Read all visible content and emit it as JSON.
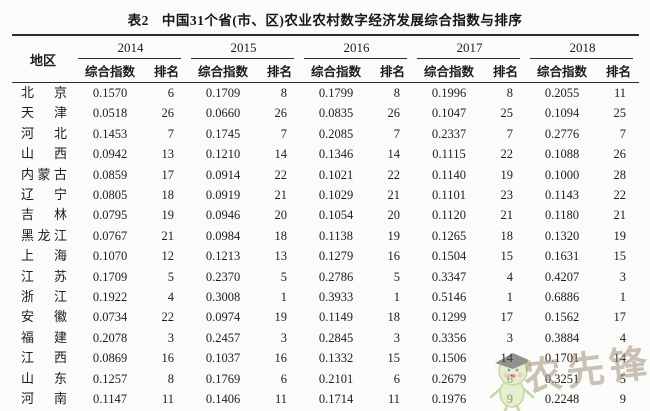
{
  "title": {
    "label": "表2",
    "text": "中国31个省(市、区)农业农村数字经济发展综合指数与排序"
  },
  "table": {
    "region_header": "地区",
    "years": [
      "2014",
      "2015",
      "2016",
      "2017",
      "2018"
    ],
    "subheaders": {
      "index": "综合指数",
      "rank": "排名"
    },
    "rows": [
      {
        "region": "北京",
        "cells": [
          "0.1570",
          "6",
          "0.1709",
          "8",
          "0.1799",
          "8",
          "0.1996",
          "8",
          "0.2055",
          "11"
        ]
      },
      {
        "region": "天津",
        "cells": [
          "0.0518",
          "26",
          "0.0660",
          "26",
          "0.0835",
          "26",
          "0.1047",
          "25",
          "0.1094",
          "25"
        ]
      },
      {
        "region": "河北",
        "cells": [
          "0.1453",
          "7",
          "0.1745",
          "7",
          "0.2085",
          "7",
          "0.2337",
          "7",
          "0.2776",
          "7"
        ]
      },
      {
        "region": "山西",
        "cells": [
          "0.0942",
          "13",
          "0.1210",
          "14",
          "0.1346",
          "14",
          "0.1115",
          "22",
          "0.1088",
          "26"
        ]
      },
      {
        "region": "内蒙古",
        "cells": [
          "0.0859",
          "17",
          "0.0914",
          "22",
          "0.1021",
          "22",
          "0.1140",
          "19",
          "0.1000",
          "28"
        ]
      },
      {
        "region": "辽宁",
        "cells": [
          "0.0805",
          "18",
          "0.0919",
          "21",
          "0.1029",
          "21",
          "0.1101",
          "23",
          "0.1143",
          "22"
        ]
      },
      {
        "region": "吉林",
        "cells": [
          "0.0795",
          "19",
          "0.0946",
          "20",
          "0.1054",
          "20",
          "0.1120",
          "21",
          "0.1180",
          "21"
        ]
      },
      {
        "region": "黑龙江",
        "cells": [
          "0.0767",
          "21",
          "0.0984",
          "18",
          "0.1138",
          "19",
          "0.1265",
          "18",
          "0.1320",
          "19"
        ]
      },
      {
        "region": "上海",
        "cells": [
          "0.1070",
          "12",
          "0.1213",
          "13",
          "0.1279",
          "16",
          "0.1504",
          "15",
          "0.1631",
          "15"
        ]
      },
      {
        "region": "江苏",
        "cells": [
          "0.1709",
          "5",
          "0.2370",
          "5",
          "0.2786",
          "5",
          "0.3347",
          "4",
          "0.4207",
          "3"
        ]
      },
      {
        "region": "浙江",
        "cells": [
          "0.1922",
          "4",
          "0.3008",
          "1",
          "0.3933",
          "1",
          "0.5146",
          "1",
          "0.6886",
          "1"
        ]
      },
      {
        "region": "安徽",
        "cells": [
          "0.0734",
          "22",
          "0.0974",
          "19",
          "0.1149",
          "18",
          "0.1299",
          "17",
          "0.1562",
          "17"
        ]
      },
      {
        "region": "福建",
        "cells": [
          "0.2078",
          "3",
          "0.2457",
          "3",
          "0.2845",
          "3",
          "0.3356",
          "3",
          "0.3884",
          "4"
        ]
      },
      {
        "region": "江西",
        "cells": [
          "0.0869",
          "16",
          "0.1037",
          "16",
          "0.1332",
          "15",
          "0.1506",
          "14",
          "0.1701",
          "14"
        ]
      },
      {
        "region": "山东",
        "cells": [
          "0.1257",
          "8",
          "0.1769",
          "6",
          "0.2101",
          "6",
          "0.2679",
          "6",
          "0.3251",
          "5"
        ]
      },
      {
        "region": "河南",
        "cells": [
          "0.1147",
          "11",
          "0.1406",
          "11",
          "0.1714",
          "11",
          "0.1976",
          "9",
          "0.2248",
          "9"
        ]
      }
    ]
  },
  "watermark": {
    "text": "农先锋",
    "text_color": "#a3907c",
    "mascot_fill": "#d8e6b2",
    "mascot_stroke": "#a4bd6f",
    "mascot_cap": "#4a4a4a",
    "mascot_mouth": "#c0392b",
    "mascot_cheek": "#e8a8b0"
  }
}
